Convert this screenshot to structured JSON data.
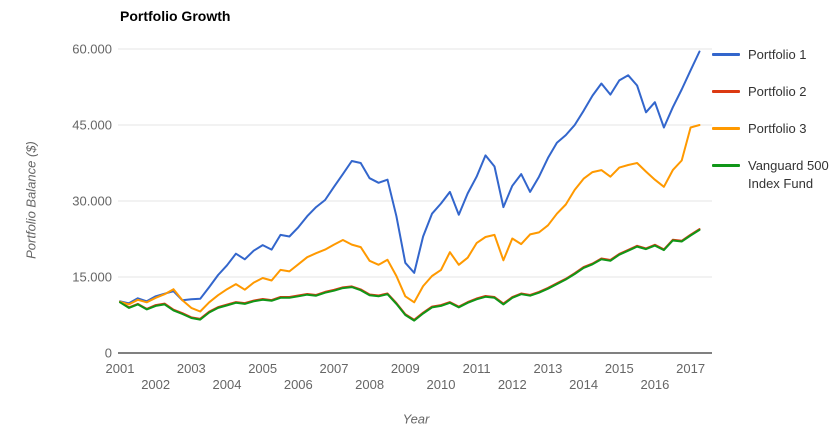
{
  "title": "Portfolio Growth",
  "axes": {
    "x_title": "Year",
    "y_title": "Portfolio Balance ($)"
  },
  "legend": {
    "position": "right",
    "items": [
      {
        "label": "Portfolio 1",
        "color": "#3366cc"
      },
      {
        "label": "Portfolio 2",
        "color": "#dc3912"
      },
      {
        "label": "Portfolio 3",
        "color": "#ff9900"
      },
      {
        "label": "Vanguard 500 Index Fund",
        "color": "#109618"
      }
    ]
  },
  "styles": {
    "grid_color": "#e6e6e6",
    "baseline_color": "#808080",
    "tick_text_color": "#666666",
    "legend_text_color": "#333333",
    "title_color": "#000000",
    "background": "#ffffff"
  },
  "chart_data": {
    "type": "line",
    "title": "Portfolio Growth",
    "xlabel": "Year",
    "ylabel": "Portfolio Balance ($)",
    "grid": "horizontal-only",
    "legend_position": "right",
    "ylim": [
      0,
      60000
    ],
    "xlim": [
      2001,
      2017.6
    ],
    "y_ticks": [
      {
        "value": 0,
        "label": "0"
      },
      {
        "value": 15000,
        "label": "15.000"
      },
      {
        "value": 30000,
        "label": "30.000"
      },
      {
        "value": 45000,
        "label": "45.000"
      },
      {
        "value": 60000,
        "label": "60.000"
      }
    ],
    "x_ticks": [
      2001,
      2002,
      2003,
      2004,
      2005,
      2006,
      2007,
      2008,
      2009,
      2010,
      2011,
      2012,
      2013,
      2014,
      2015,
      2016,
      2017
    ],
    "x": [
      2001,
      2001.25,
      2001.5,
      2001.75,
      2002,
      2002.25,
      2002.5,
      2002.75,
      2003,
      2003.25,
      2003.5,
      2003.75,
      2004,
      2004.25,
      2004.5,
      2004.75,
      2005,
      2005.25,
      2005.5,
      2005.75,
      2006,
      2006.25,
      2006.5,
      2006.75,
      2007,
      2007.25,
      2007.5,
      2007.75,
      2008,
      2008.25,
      2008.5,
      2008.75,
      2009,
      2009.25,
      2009.5,
      2009.75,
      2010,
      2010.25,
      2010.5,
      2010.75,
      2011,
      2011.25,
      2011.5,
      2011.75,
      2012,
      2012.25,
      2012.5,
      2012.75,
      2013,
      2013.25,
      2013.5,
      2013.75,
      2014,
      2014.25,
      2014.5,
      2014.75,
      2015,
      2015.25,
      2015.5,
      2015.75,
      2016,
      2016.25,
      2016.5,
      2016.75,
      2017,
      2017.25
    ],
    "series": [
      {
        "name": "Portfolio 1",
        "color": "#3366cc",
        "values": [
          10200,
          9800,
          10800,
          10200,
          11200,
          11700,
          12200,
          10400,
          10600,
          10700,
          13000,
          15400,
          17300,
          19600,
          18500,
          20200,
          21300,
          20400,
          23300,
          23000,
          24800,
          27000,
          28800,
          30200,
          32800,
          35300,
          37900,
          37500,
          34500,
          33600,
          34200,
          27000,
          17800,
          15800,
          23000,
          27500,
          29500,
          31800,
          27300,
          31500,
          34800,
          39000,
          36800,
          28800,
          33000,
          35300,
          31800,
          34800,
          38500,
          41500,
          43000,
          45000,
          47800,
          50800,
          53200,
          51000,
          53800,
          54800,
          52800,
          47500,
          49500,
          44500,
          48500,
          52000,
          55800,
          59500
        ]
      },
      {
        "name": "Portfolio 2",
        "color": "#dc3912",
        "values": [
          10100,
          9000,
          9700,
          8700,
          9450,
          9750,
          8550,
          7850,
          7050,
          6750,
          8150,
          9050,
          9550,
          10050,
          9850,
          10350,
          10650,
          10450,
          11050,
          11050,
          11350,
          11650,
          11450,
          12050,
          12450,
          12950,
          13150,
          12550,
          11550,
          11350,
          11750,
          9850,
          7650,
          6550,
          7950,
          9150,
          9450,
          10050,
          9150,
          10050,
          10750,
          11250,
          11050,
          9750,
          11050,
          11750,
          11450,
          12050,
          12850,
          13750,
          14650,
          15750,
          16950,
          17650,
          18650,
          18350,
          19550,
          20350,
          21150,
          20650,
          21350,
          20450,
          22350,
          22150,
          23350,
          24450
        ]
      },
      {
        "name": "Portfolio 3",
        "color": "#ff9900",
        "values": [
          10100,
          9600,
          10500,
          10000,
          10900,
          11600,
          12600,
          10400,
          8900,
          8200,
          10000,
          11400,
          12600,
          13600,
          12500,
          13900,
          14800,
          14300,
          16400,
          16100,
          17500,
          18900,
          19700,
          20400,
          21400,
          22300,
          21400,
          20900,
          18200,
          17400,
          18400,
          15200,
          11200,
          10000,
          13200,
          15200,
          16400,
          19900,
          17400,
          18800,
          21700,
          22900,
          23300,
          18300,
          22600,
          21500,
          23400,
          23800,
          25200,
          27500,
          29300,
          32200,
          34400,
          35700,
          36100,
          34800,
          36600,
          37100,
          37500,
          35800,
          34200,
          32800,
          36100,
          38000,
          44500,
          45000
        ]
      },
      {
        "name": "Vanguard 500 Index Fund",
        "color": "#109618",
        "values": [
          10000,
          8900,
          9600,
          8600,
          9300,
          9600,
          8400,
          7700,
          6900,
          6600,
          8000,
          8900,
          9400,
          9900,
          9700,
          10200,
          10500,
          10300,
          10900,
          10900,
          11200,
          11500,
          11300,
          11900,
          12300,
          12800,
          13000,
          12400,
          11400,
          11200,
          11600,
          9700,
          7500,
          6400,
          7800,
          9000,
          9300,
          9900,
          9000,
          9900,
          10600,
          11100,
          10900,
          9600,
          10900,
          11600,
          11300,
          11900,
          12700,
          13600,
          14500,
          15600,
          16800,
          17500,
          18500,
          18200,
          19400,
          20200,
          21000,
          20500,
          21200,
          20300,
          22200,
          22000,
          23200,
          24300
        ]
      }
    ]
  }
}
